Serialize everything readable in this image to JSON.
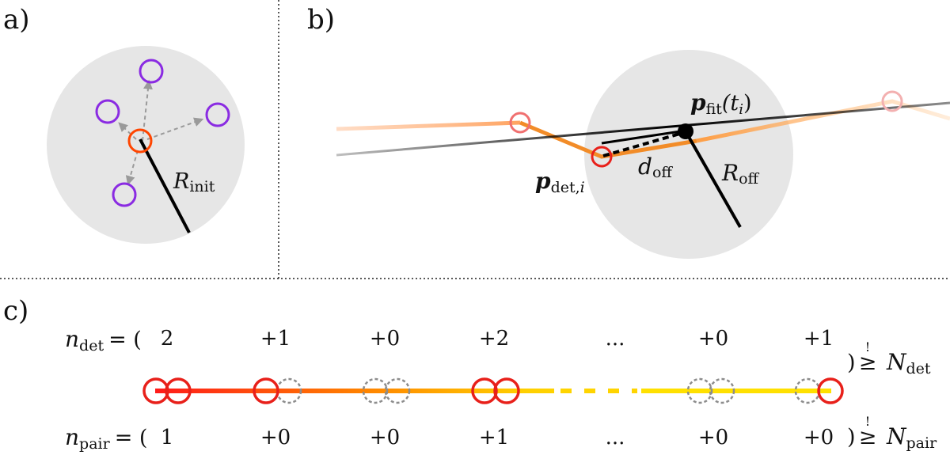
{
  "panels": {
    "a": {
      "label": "a)",
      "radius_symbol": "R",
      "radius_sub": "init"
    },
    "b": {
      "label": "b)",
      "fit_point_symbol": "p",
      "fit_point_sub": "fit",
      "fit_point_arg": "(t",
      "fit_point_arg_sub": "i",
      "fit_point_arg_close": ")",
      "det_point_symbol": "p",
      "det_point_sub": "det,",
      "det_point_sub_i": "i",
      "offset_symbol": "d",
      "offset_sub": "off",
      "radius_symbol": "R",
      "radius_sub": "off"
    },
    "c": {
      "label": "c)",
      "ndet_symbol": "n",
      "ndet_sub": "det",
      "ndet_eq": "= (",
      "ndet_values": [
        "2",
        "+1",
        "+0",
        "+2",
        "...",
        "+0",
        "+1"
      ],
      "ndet_close": ")",
      "ndet_cond_mark": "!",
      "ndet_cond": "≥",
      "ndet_threshold_symbol": "N",
      "ndet_threshold_sub": "det",
      "npair_symbol": "n",
      "npair_sub": "pair",
      "npair_eq": "= (",
      "npair_values": [
        "1",
        "+0",
        "+0",
        "+1",
        "...",
        "+0",
        "+0"
      ],
      "npair_close": ")",
      "npair_cond_mark": "!",
      "npair_cond": "≥",
      "npair_threshold_symbol": "N",
      "npair_threshold_sub": "pair"
    }
  },
  "colors": {
    "region": "#e6e6e6",
    "candidate": "#8a2be2",
    "seed": "#ff4500",
    "detection": "#e8201a",
    "missing": "#8c8c8c",
    "track_start": "#ff1a1a",
    "track_end": "#ffe000"
  }
}
